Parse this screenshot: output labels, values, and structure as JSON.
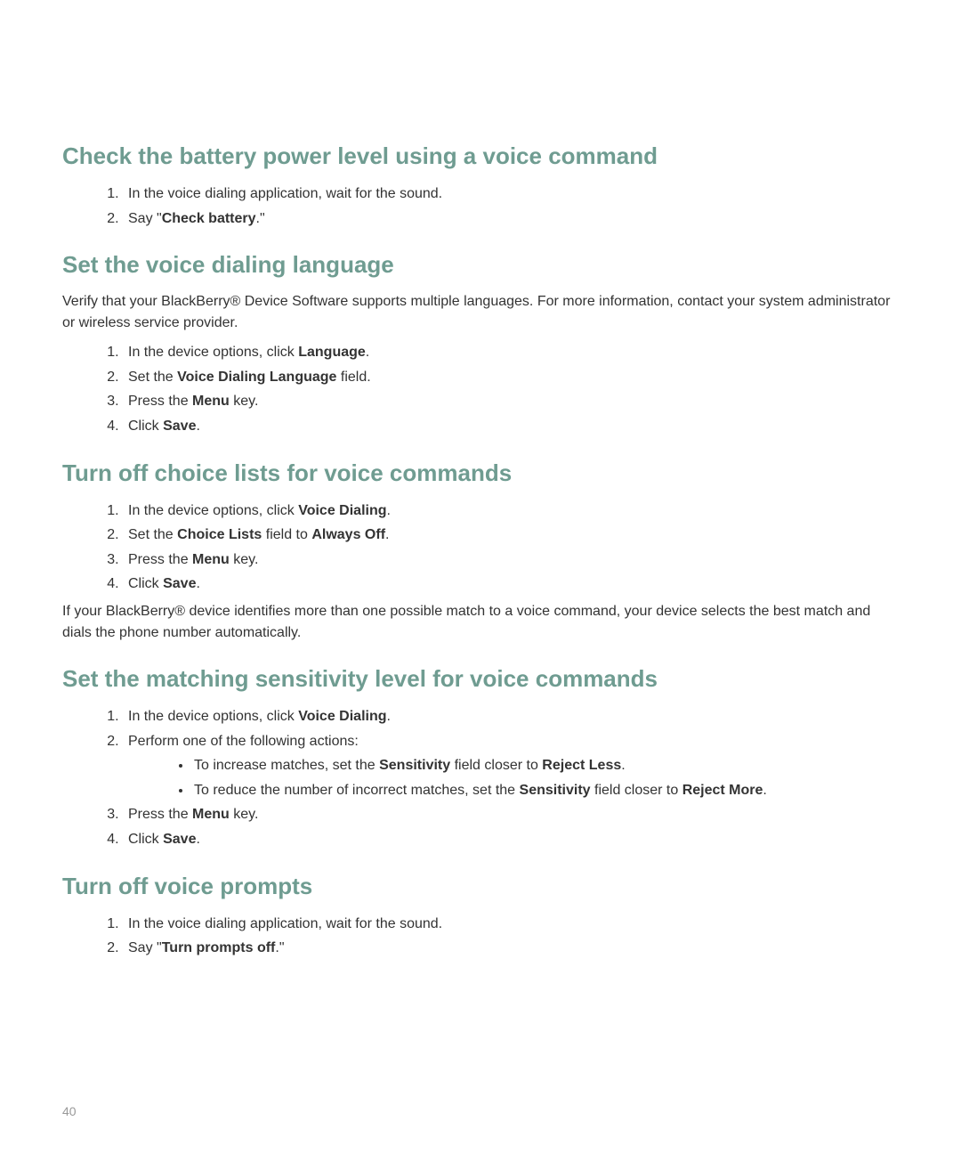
{
  "section1": {
    "heading": "Check the battery power level using a voice command",
    "step1": "In the voice dialing application, wait for the sound.",
    "step2_prefix": "Say \"",
    "step2_bold": "Check battery",
    "step2_suffix": ".\""
  },
  "section2": {
    "heading": "Set the voice dialing language",
    "intro": "Verify that your BlackBerry® Device Software supports multiple languages. For more information, contact your system administrator or wireless service provider.",
    "step1_prefix": "In the device options, click ",
    "step1_bold": "Language",
    "step1_suffix": ".",
    "step2_prefix": "Set the ",
    "step2_bold": "Voice Dialing Language",
    "step2_suffix": " field.",
    "step3_prefix": "Press the ",
    "step3_bold": "Menu",
    "step3_suffix": " key.",
    "step4_prefix": "Click ",
    "step4_bold": "Save",
    "step4_suffix": "."
  },
  "section3": {
    "heading": "Turn off choice lists for voice commands",
    "step1_prefix": "In the device options, click ",
    "step1_bold": "Voice Dialing",
    "step1_suffix": ".",
    "step2_prefix": "Set the ",
    "step2_bold1": "Choice Lists",
    "step2_mid": " field to ",
    "step2_bold2": "Always Off",
    "step2_suffix": ".",
    "step3_prefix": "Press the ",
    "step3_bold": "Menu",
    "step3_suffix": " key.",
    "step4_prefix": "Click ",
    "step4_bold": "Save",
    "step4_suffix": ".",
    "note": "If your BlackBerry® device identifies more than one possible match to a voice command, your device selects the best match and dials the phone number automatically."
  },
  "section4": {
    "heading": "Set the matching sensitivity level for voice commands",
    "step1_prefix": "In the device options, click ",
    "step1_bold": "Voice Dialing",
    "step1_suffix": ".",
    "step2": "Perform one of the following actions:",
    "bullet1_prefix": "To increase matches, set the ",
    "bullet1_bold1": "Sensitivity",
    "bullet1_mid": " field closer to ",
    "bullet1_bold2": "Reject Less",
    "bullet1_suffix": ".",
    "bullet2_prefix": "To reduce the number of incorrect matches, set the ",
    "bullet2_bold1": "Sensitivity",
    "bullet2_mid": " field closer to ",
    "bullet2_bold2": "Reject More",
    "bullet2_suffix": ".",
    "step3_prefix": "Press the ",
    "step3_bold": "Menu",
    "step3_suffix": " key.",
    "step4_prefix": "Click ",
    "step4_bold": "Save",
    "step4_suffix": "."
  },
  "section5": {
    "heading": "Turn off voice prompts",
    "step1": "In the voice dialing application, wait for the sound.",
    "step2_prefix": "Say \"",
    "step2_bold": "Turn prompts off",
    "step2_suffix": ".\""
  },
  "pageNumber": "40"
}
